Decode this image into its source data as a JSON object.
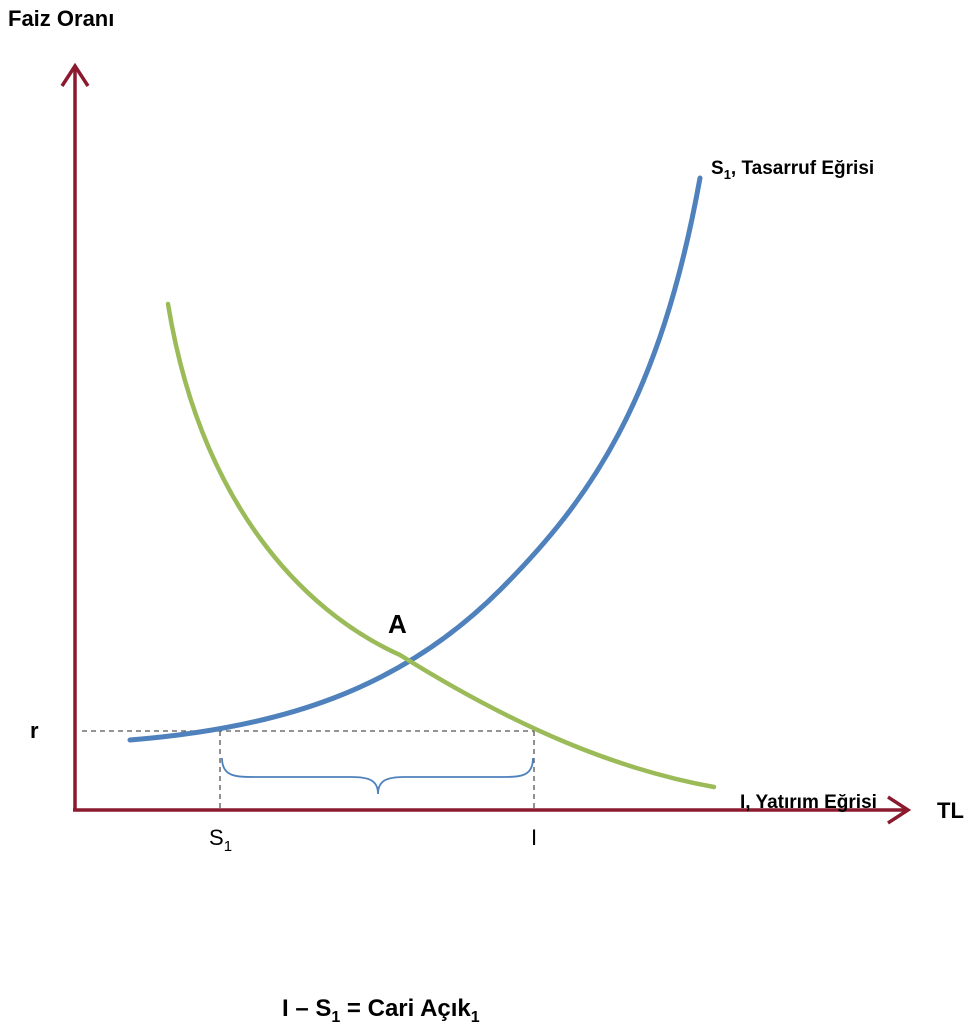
{
  "axes": {
    "y_label": "Faiz Oranı",
    "x_label": "TL",
    "axis_color": "#8b1a2e"
  },
  "curves": {
    "savings": {
      "prefix": "S",
      "subscript": "1",
      "suffix": ", Tasarruf Eğrisi",
      "color": "#4f81bd"
    },
    "investment": {
      "label": "I, Yatırım Eğrisi",
      "color": "#9bbb59"
    }
  },
  "point_a": "A",
  "levels": {
    "rate": "r",
    "s1_main": "S",
    "s1_sub": "1",
    "i": "I"
  },
  "deficit": {
    "part1": "I – S",
    "sub1": "1",
    "part2": " = Cari Açık",
    "sub2": "1",
    "brace_color": "#4f81bd"
  },
  "guide_color": "#555555"
}
